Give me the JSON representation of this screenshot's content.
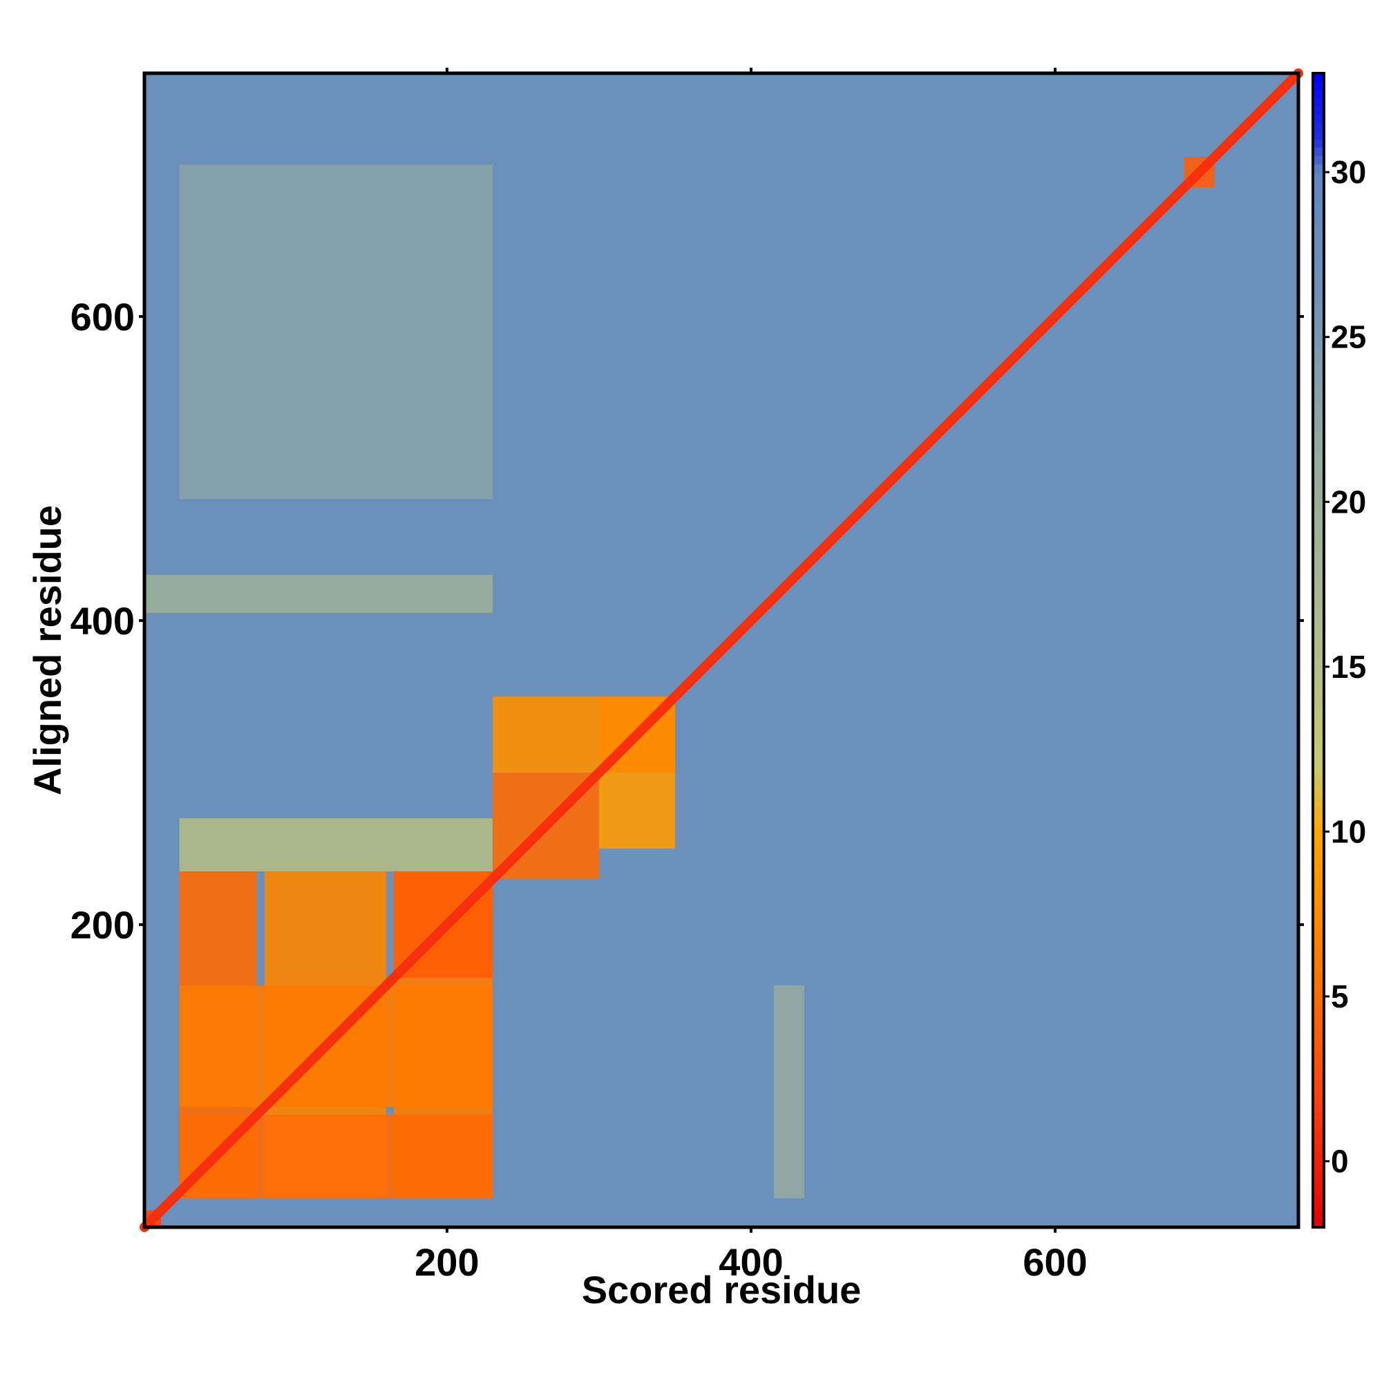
{
  "chart_data": {
    "type": "heatmap",
    "title": "",
    "xlabel": "Scored residue",
    "ylabel": "Aligned residue",
    "xlim": [
      1,
      760
    ],
    "ylim": [
      1,
      760
    ],
    "x_ticks": [
      200,
      400,
      600
    ],
    "y_ticks": [
      200,
      400,
      600
    ],
    "colorbar": {
      "range": [
        -2,
        33
      ],
      "ticks": [
        0,
        5,
        10,
        15,
        20,
        25,
        30
      ],
      "stops": [
        {
          "value": -2,
          "color": "#e00000"
        },
        {
          "value": 2,
          "color": "#ff4010"
        },
        {
          "value": 6,
          "color": "#ff7a00"
        },
        {
          "value": 10,
          "color": "#ffa500"
        },
        {
          "value": 12,
          "color": "#c8c870"
        },
        {
          "value": 17,
          "color": "#a8b890"
        },
        {
          "value": 22,
          "color": "#90a8a0"
        },
        {
          "value": 26,
          "color": "#6f93b8"
        },
        {
          "value": 30,
          "color": "#5b88c2"
        },
        {
          "value": 31,
          "color": "#1f30e0"
        },
        {
          "value": 33,
          "color": "#0000ff"
        }
      ]
    },
    "background_value": 27,
    "diagonal": {
      "range": [
        1,
        760
      ],
      "value": 1
    },
    "blocks": [
      {
        "x": [
          1,
          12
        ],
        "y": [
          1,
          12
        ],
        "value": 2
      },
      {
        "x": [
          24,
          75
        ],
        "y": [
          20,
          235
        ],
        "value": 5
      },
      {
        "x": [
          80,
          160
        ],
        "y": [
          20,
          235
        ],
        "value": 7
      },
      {
        "x": [
          165,
          230
        ],
        "y": [
          20,
          235
        ],
        "value": 6
      },
      {
        "x": [
          24,
          230
        ],
        "y": [
          20,
          75
        ],
        "value": 5
      },
      {
        "x": [
          24,
          230
        ],
        "y": [
          80,
          160
        ],
        "value": 6
      },
      {
        "x": [
          165,
          230
        ],
        "y": [
          165,
          235
        ],
        "value": 4
      },
      {
        "x": [
          230,
          300
        ],
        "y": [
          230,
          300
        ],
        "value": 5
      },
      {
        "x": [
          300,
          350
        ],
        "y": [
          300,
          350
        ],
        "value": 4
      },
      {
        "x": [
          230,
          350
        ],
        "y": [
          300,
          350
        ],
        "value": 8
      },
      {
        "x": [
          300,
          350
        ],
        "y": [
          250,
          300
        ],
        "value": 9
      },
      {
        "x": [
          685,
          705
        ],
        "y": [
          685,
          705
        ],
        "value": 4
      }
    ],
    "bands": [
      {
        "x": [
          1,
          230
        ],
        "y": [
          405,
          430
        ],
        "value": 19
      },
      {
        "x": [
          415,
          435
        ],
        "y": [
          20,
          160
        ],
        "value": 21
      },
      {
        "x": [
          24,
          230
        ],
        "y": [
          235,
          270
        ],
        "value": 15
      },
      {
        "x": [
          24,
          230
        ],
        "y": [
          480,
          700
        ],
        "value": 23
      }
    ]
  }
}
